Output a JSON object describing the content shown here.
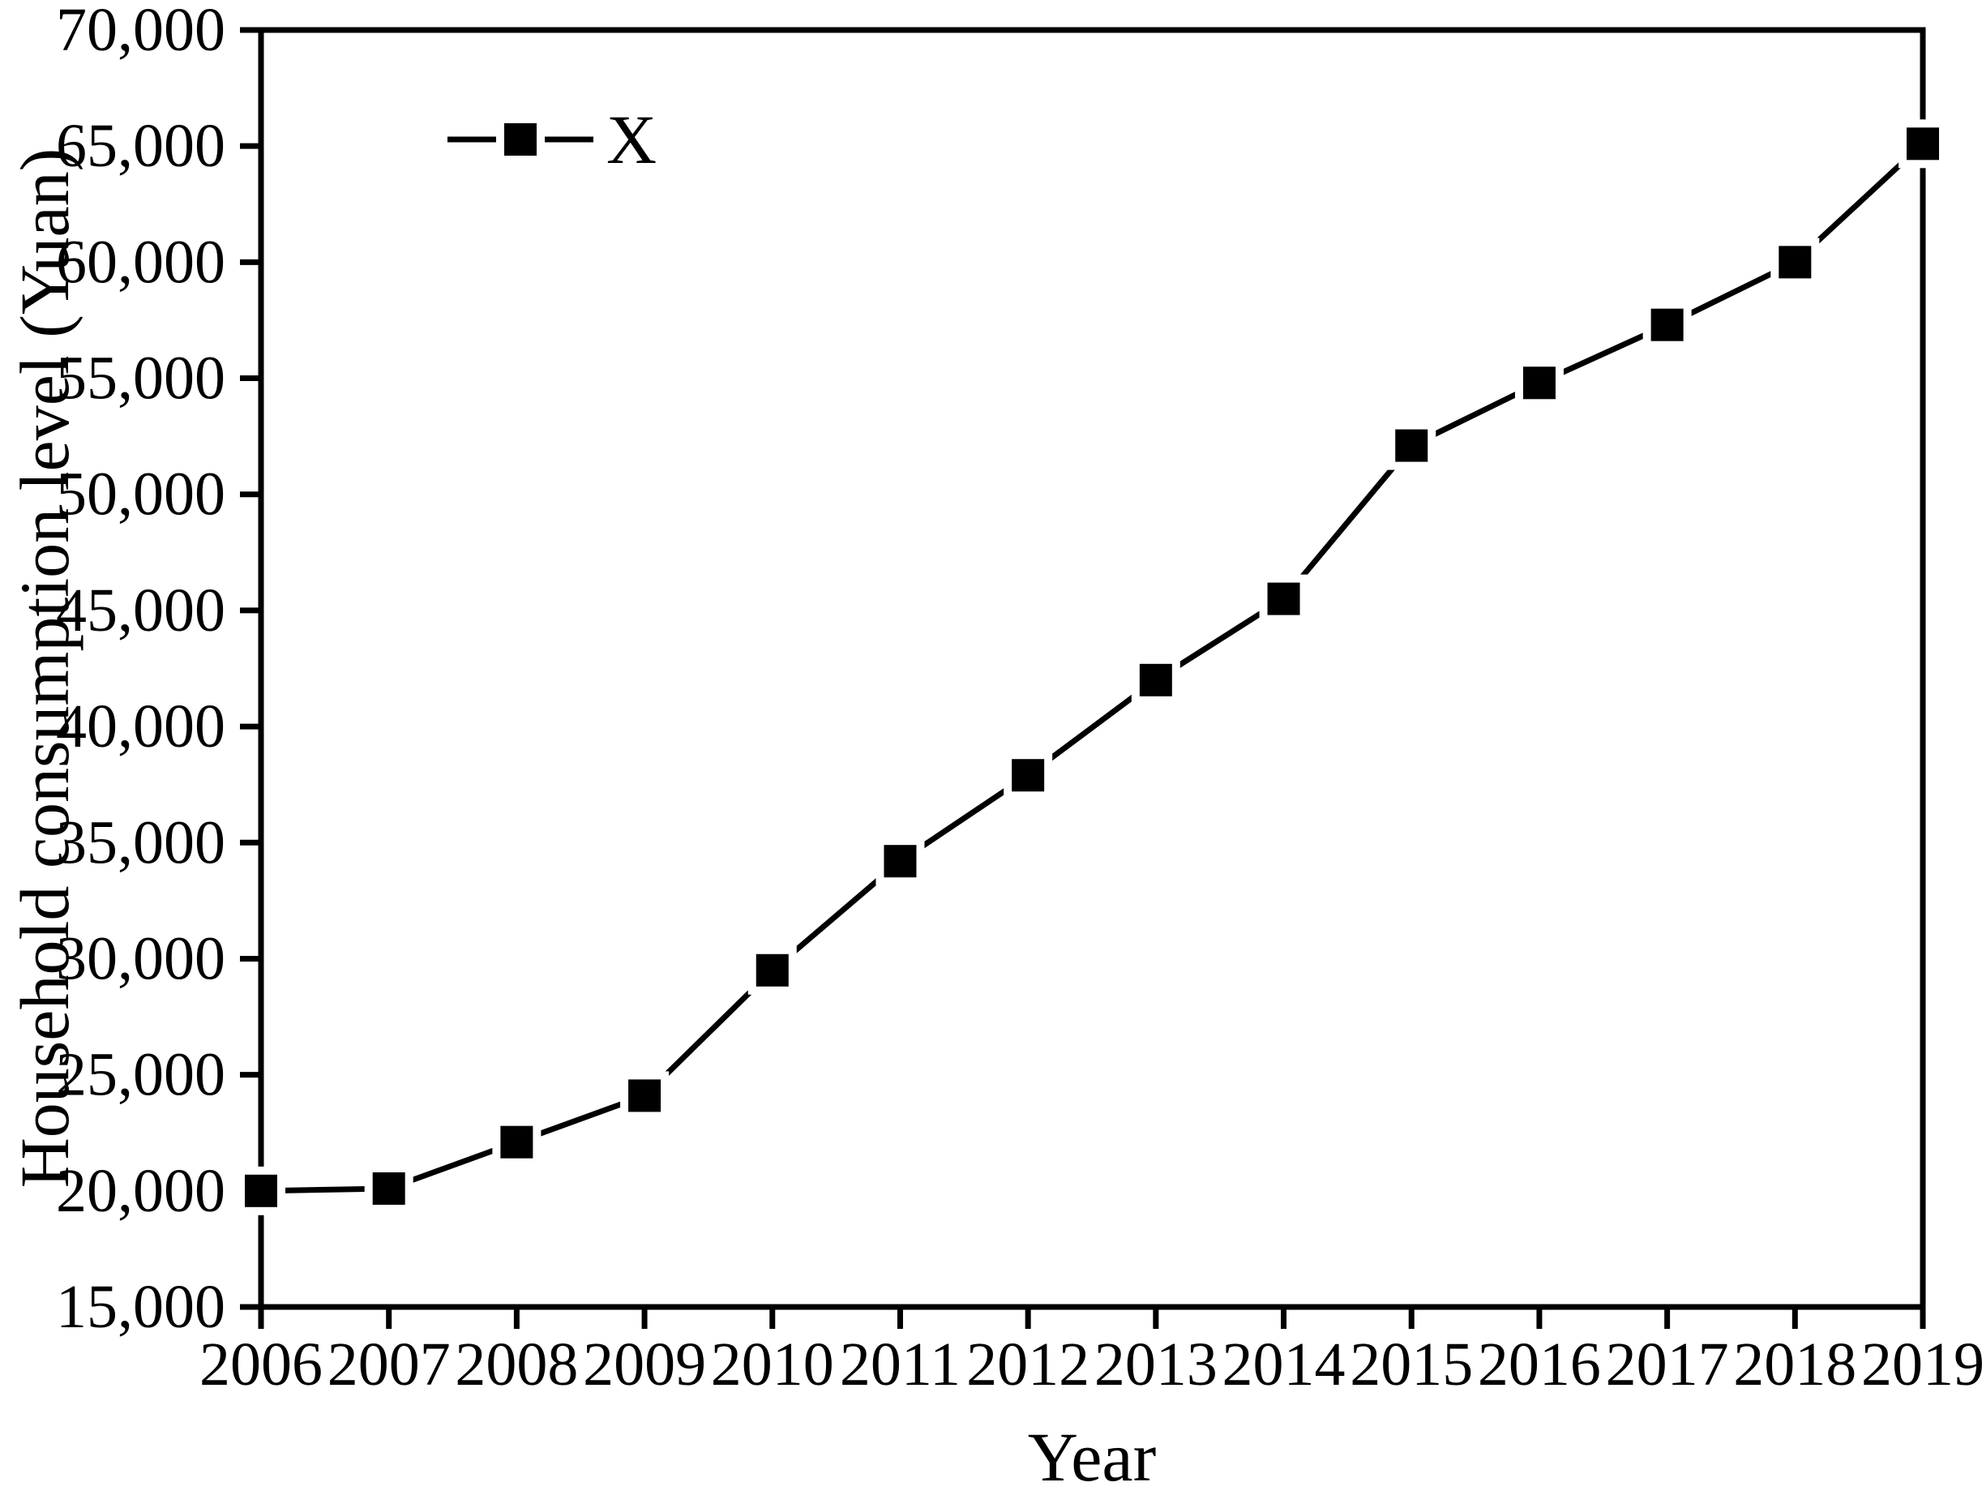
{
  "figure": {
    "background": "#ffffff",
    "ink_color": "#000000"
  },
  "chart_data": {
    "type": "line",
    "title": "",
    "xlabel": "Year",
    "ylabel": "Household consumption level (Yuan)",
    "x": [
      2006,
      2007,
      2008,
      2009,
      2010,
      2011,
      2012,
      2013,
      2014,
      2015,
      2016,
      2017,
      2018,
      2019
    ],
    "xtick_labels": [
      "2006",
      "2007",
      "2008",
      "2009",
      "2010",
      "2011",
      "2012",
      "2013",
      "2014",
      "2015",
      "2016",
      "2017",
      "2018",
      "2019"
    ],
    "ylim": [
      15000,
      70000
    ],
    "ytick_step": 5000,
    "ytick_labels": [
      "15,000",
      "20,000",
      "25,000",
      "30,000",
      "35,000",
      "40,000",
      "45,000",
      "50,000",
      "55,000",
      "60,000",
      "65,000",
      "70,000"
    ],
    "grid": false,
    "legend": {
      "position": "inside-top-left",
      "entries": [
        {
          "label": "X",
          "marker": "filled-square",
          "color": "#000000"
        }
      ]
    },
    "series": [
      {
        "name": "X",
        "color": "#000000",
        "marker": "filled-square",
        "values": [
          20000,
          20100,
          22100,
          24100,
          29500,
          34200,
          37900,
          42000,
          45500,
          52100,
          54800,
          57300,
          60000,
          65100
        ]
      }
    ]
  }
}
